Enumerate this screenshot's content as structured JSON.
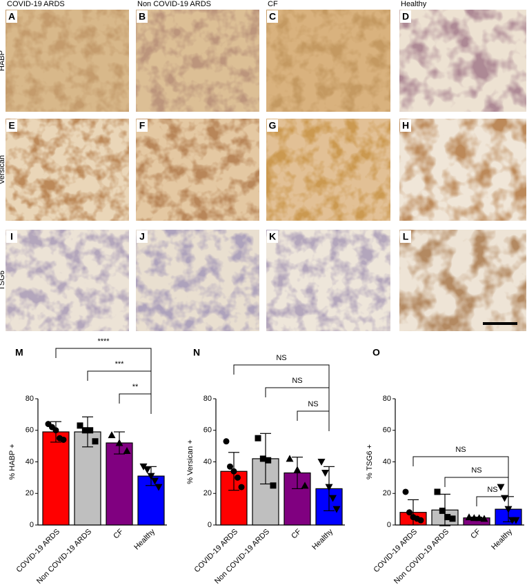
{
  "columns": [
    "COVID-19 ARDS",
    "Non COVID-19 ARDS",
    "CF",
    "Healthy"
  ],
  "rows": [
    "HABP",
    "Versican",
    "TSG6"
  ],
  "panel_letters": [
    "A",
    "B",
    "C",
    "D",
    "E",
    "F",
    "G",
    "H",
    "I",
    "J",
    "K",
    "L"
  ],
  "chart_data": [
    {
      "type": "bar",
      "panel": "M",
      "ylabel": "% HABP +",
      "categories": [
        "COVID-19 ARDS",
        "Non COVID-19 ARDS",
        "CF",
        "Healthy"
      ],
      "colors": [
        "#ff0000",
        "#bfbfbf",
        "#800080",
        "#0000ff"
      ],
      "markers": [
        "circle",
        "square",
        "triangle",
        "triangle-down"
      ],
      "values": [
        59,
        59,
        52,
        31
      ],
      "errors": [
        6.5,
        9.5,
        7,
        6
      ],
      "points": [
        [
          64,
          62,
          60,
          55,
          54
        ],
        [
          63,
          60,
          60,
          53
        ],
        [
          57,
          52,
          47
        ],
        [
          37,
          35,
          31,
          28,
          24
        ]
      ],
      "ylim": [
        0,
        80
      ],
      "yticks": [
        0,
        20,
        40,
        60,
        80
      ],
      "comparisons": [
        {
          "from": 0,
          "to": 3,
          "label": "****"
        },
        {
          "from": 1,
          "to": 3,
          "label": "***"
        },
        {
          "from": 2,
          "to": 3,
          "label": "**"
        }
      ]
    },
    {
      "type": "bar",
      "panel": "N",
      "ylabel": "% Versican +",
      "categories": [
        "COVID-19 ARDS",
        "Non COVID-19 ARDS",
        "CF",
        "Healthy"
      ],
      "colors": [
        "#ff0000",
        "#bfbfbf",
        "#800080",
        "#0000ff"
      ],
      "markers": [
        "circle",
        "square",
        "triangle",
        "triangle-down"
      ],
      "values": [
        34,
        42,
        33,
        23
      ],
      "errors": [
        12,
        16,
        10,
        14
      ],
      "points": [
        [
          53,
          37,
          34,
          30,
          24
        ],
        [
          55,
          42,
          41,
          25
        ],
        [
          42,
          35,
          25
        ],
        [
          40,
          33,
          24,
          17,
          10
        ]
      ],
      "ylim": [
        0,
        80
      ],
      "yticks": [
        0,
        20,
        40,
        60,
        80
      ],
      "comparisons": [
        {
          "from": 0,
          "to": 3,
          "label": "NS"
        },
        {
          "from": 1,
          "to": 3,
          "label": "NS"
        },
        {
          "from": 2,
          "to": 3,
          "label": "NS"
        }
      ]
    },
    {
      "type": "bar",
      "panel": "O",
      "ylabel": "% TSG6 +",
      "categories": [
        "COVID-19 ARDS",
        "Non COVID-19 ARDS",
        "CF",
        "Healthy"
      ],
      "colors": [
        "#ff0000",
        "#bfbfbf",
        "#800080",
        "#0000ff"
      ],
      "markers": [
        "circle",
        "square",
        "triangle",
        "triangle-down"
      ],
      "values": [
        8,
        9.5,
        4.5,
        10
      ],
      "errors": [
        8,
        10,
        0.5,
        8
      ],
      "points": [
        [
          21,
          8,
          5,
          4,
          3
        ],
        [
          21,
          9,
          5,
          4
        ],
        [
          5,
          4.5,
          4.5,
          4
        ],
        [
          24,
          17,
          10,
          3,
          3
        ]
      ],
      "ylim": [
        0,
        80
      ],
      "yticks": [
        0,
        20,
        40,
        60,
        80
      ],
      "comparisons": [
        {
          "from": 0,
          "to": 3,
          "label": "NS"
        },
        {
          "from": 1,
          "to": 3,
          "label": "NS"
        },
        {
          "from": 2,
          "to": 3,
          "label": "NS"
        }
      ]
    }
  ]
}
